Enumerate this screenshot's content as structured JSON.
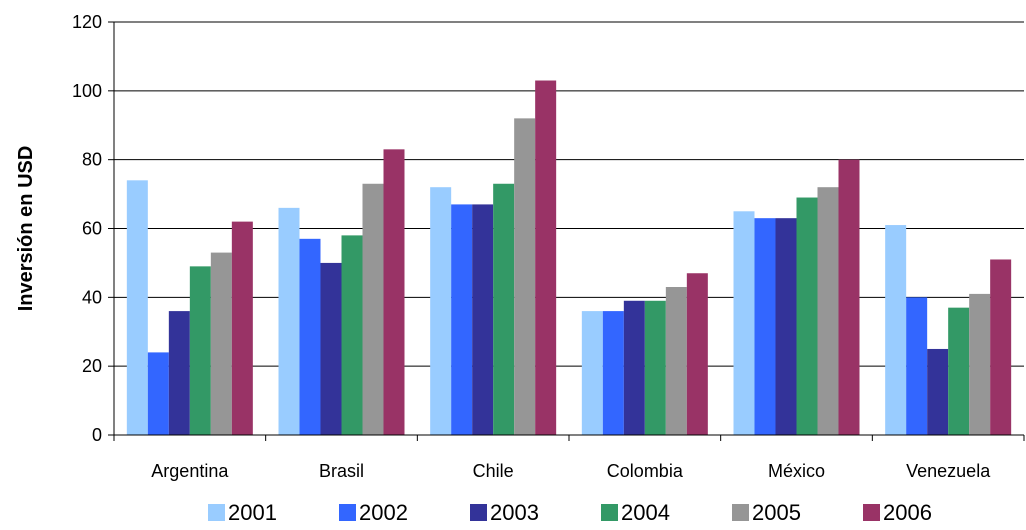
{
  "chart_data": {
    "type": "bar",
    "title": "",
    "xlabel": "",
    "ylabel": "Inversión en USD",
    "ylim": [
      0,
      120
    ],
    "yticks": [
      0,
      20,
      40,
      60,
      80,
      100,
      120
    ],
    "grid": true,
    "legend": "bottom",
    "categories": [
      "Argentina",
      "Brasil",
      "Chile",
      "Colombia",
      "México",
      "Venezuela"
    ],
    "series": [
      {
        "name": "2001",
        "color": "#99CCFF",
        "values": [
          74,
          66,
          72,
          36,
          65,
          61
        ]
      },
      {
        "name": "2002",
        "color": "#3366FF",
        "values": [
          24,
          57,
          67,
          36,
          63,
          40
        ]
      },
      {
        "name": "2003",
        "color": "#333399",
        "values": [
          36,
          50,
          67,
          39,
          63,
          25
        ]
      },
      {
        "name": "2004",
        "color": "#339966",
        "values": [
          49,
          58,
          73,
          39,
          69,
          37
        ]
      },
      {
        "name": "2005",
        "color": "#969696",
        "values": [
          53,
          73,
          92,
          43,
          72,
          41
        ]
      },
      {
        "name": "2006",
        "color": "#993366",
        "values": [
          62,
          83,
          103,
          47,
          80,
          51
        ]
      }
    ]
  }
}
